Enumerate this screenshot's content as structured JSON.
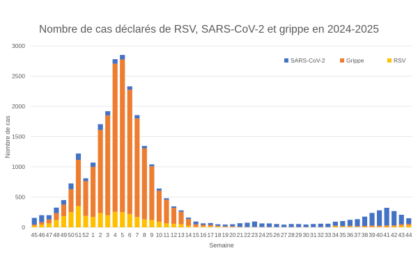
{
  "chart_data": {
    "type": "bar",
    "stacked": true,
    "title": "Nombre de cas déclarés de RSV, SARS-CoV-2 et grippe en 2024-2025",
    "xlabel": "Semaine",
    "ylabel": "Nombre de cas",
    "ylim": [
      0,
      3000
    ],
    "yticks": [
      0,
      500,
      1000,
      1500,
      2000,
      2500,
      3000
    ],
    "grid": true,
    "legend_position": "top-right",
    "categories": [
      "45",
      "46",
      "47",
      "48",
      "49",
      "50",
      "51",
      "52",
      "1",
      "2",
      "3",
      "4",
      "5",
      "6",
      "7",
      "8",
      "9",
      "10",
      "11",
      "12",
      "13",
      "14",
      "15",
      "16",
      "17",
      "18",
      "19",
      "20",
      "21",
      "22",
      "23",
      "24",
      "25",
      "26",
      "27",
      "28",
      "29",
      "30",
      "31",
      "32",
      "33",
      "34",
      "35",
      "36",
      "37",
      "38",
      "39",
      "40",
      "41",
      "42",
      "43",
      "44"
    ],
    "series": [
      {
        "name": "RSV",
        "color": "#FFC000",
        "values": [
          25,
          45,
          65,
          120,
          185,
          250,
          350,
          190,
          170,
          235,
          200,
          255,
          250,
          220,
          170,
          130,
          120,
          90,
          65,
          55,
          50,
          25,
          10,
          15,
          15,
          10,
          5,
          5,
          2,
          2,
          2,
          2,
          2,
          2,
          2,
          2,
          2,
          2,
          2,
          2,
          2,
          15,
          10,
          10,
          8,
          8,
          10,
          10,
          12,
          15,
          25,
          30
        ]
      },
      {
        "name": "Grippe",
        "color": "#ED7D31",
        "values": [
          20,
          40,
          65,
          115,
          190,
          380,
          765,
          575,
          830,
          1375,
          1650,
          2450,
          2525,
          2055,
          1630,
          1175,
          890,
          515,
          390,
          265,
          205,
          110,
          40,
          25,
          25,
          15,
          10,
          10,
          5,
          3,
          3,
          2,
          2,
          2,
          2,
          2,
          2,
          2,
          2,
          2,
          2,
          10,
          10,
          15,
          10,
          15,
          20,
          15,
          20,
          18,
          25,
          25
        ]
      },
      {
        "name": "SARS-CoV-2",
        "color": "#4472C4",
        "values": [
          110,
          115,
          70,
          90,
          75,
          95,
          105,
          45,
          70,
          95,
          70,
          75,
          75,
          55,
          55,
          40,
          30,
          35,
          25,
          25,
          25,
          25,
          45,
          25,
          30,
          25,
          30,
          35,
          60,
          70,
          90,
          60,
          60,
          50,
          40,
          50,
          50,
          42,
          50,
          55,
          55,
          67,
          83,
          98,
          116,
          153,
          207,
          255,
          290,
          235,
          157,
          94
        ]
      }
    ]
  }
}
